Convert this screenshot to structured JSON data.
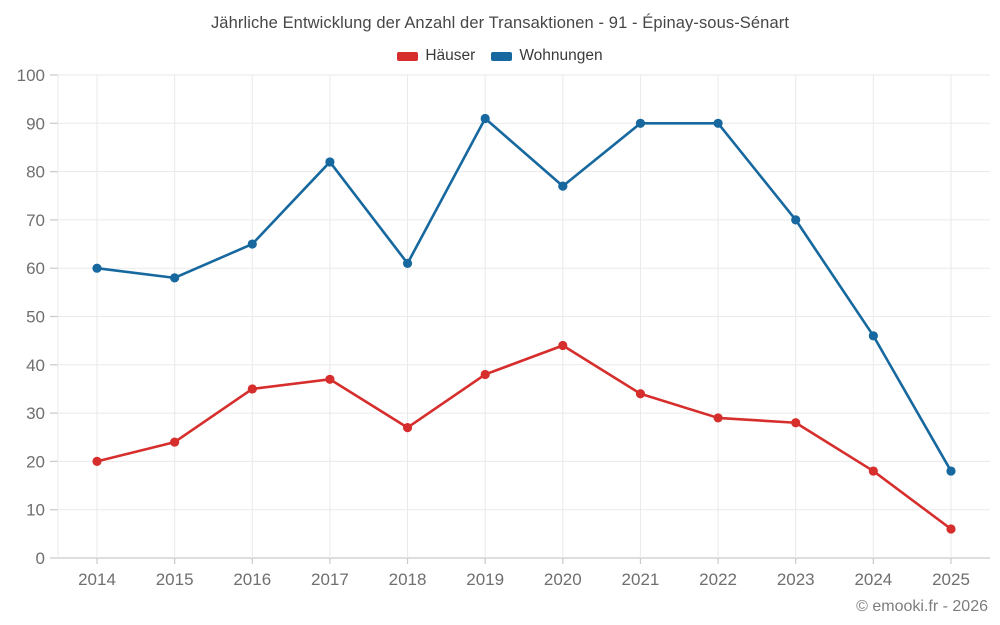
{
  "title": "Jährliche Entwicklung der Anzahl der Transaktionen - 91 - Épinay-sous-Sénart",
  "footer": "© emooki.fr - 2026",
  "colors": {
    "hauser": "#d62e2c",
    "wohnungen": "#16689e",
    "grid": "#eaeaea",
    "axis": "#c9c9c9",
    "tick_label": "#6f6f6f"
  },
  "chart_data": {
    "type": "line",
    "categories": [
      "2014",
      "2015",
      "2016",
      "2017",
      "2018",
      "2019",
      "2020",
      "2021",
      "2022",
      "2023",
      "2024",
      "2025"
    ],
    "series": [
      {
        "name": "Häuser",
        "color": "#d62e2c",
        "values": [
          20,
          24,
          35,
          37,
          27,
          38,
          44,
          34,
          29,
          28,
          18,
          6
        ]
      },
      {
        "name": "Wohnungen",
        "color": "#16689e",
        "values": [
          60,
          58,
          65,
          82,
          61,
          91,
          77,
          90,
          90,
          70,
          46,
          18
        ]
      }
    ],
    "title": "Jährliche Entwicklung der Anzahl der Transaktionen - 91 - Épinay-sous-Sénart",
    "xlabel": "",
    "ylabel": "",
    "ylim": [
      0,
      100
    ],
    "ytick_step": 10,
    "grid": true,
    "legend_position": "top",
    "legend_entries": [
      "Häuser",
      "Wohnungen"
    ]
  }
}
